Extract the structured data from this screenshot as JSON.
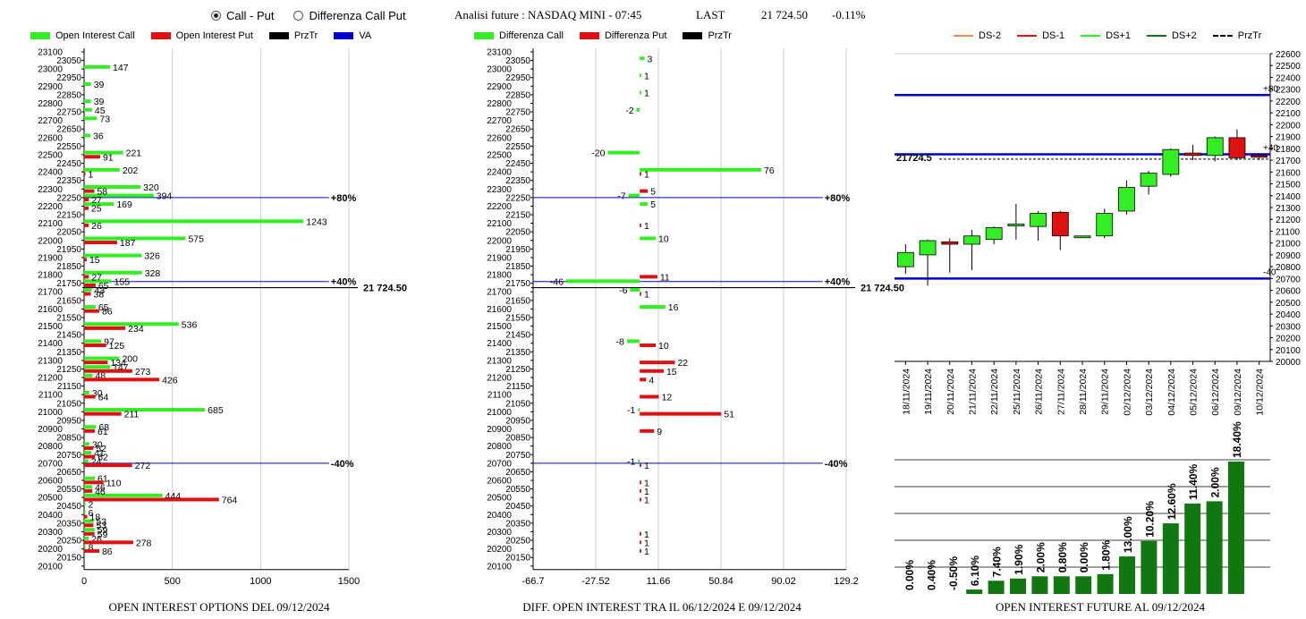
{
  "header": {
    "mode_options": [
      {
        "label": "Call - Put",
        "selected": true
      },
      {
        "label": "Differenza Call Put",
        "selected": false
      }
    ],
    "title": "Analisi future : NASDAQ MINI - 07:45",
    "last_label": "LAST",
    "last_value": "21 724.50",
    "last_change": "-0.11%"
  },
  "colors": {
    "call_green": "#33ee22",
    "put_red": "#dd1111",
    "blue": "#0000cc",
    "dark_green": "#117711"
  },
  "legends": {
    "left": [
      {
        "label": "Open Interest Call",
        "color": "#33ee22",
        "kind": "box"
      },
      {
        "label": "Open Interest Put",
        "color": "#dd1111",
        "kind": "box"
      },
      {
        "label": "PrzTr",
        "color": "#000000",
        "kind": "box"
      },
      {
        "label": "VA",
        "color": "#0000cc",
        "kind": "box"
      }
    ],
    "middle": [
      {
        "label": "Differenza Call",
        "color": "#33ee22",
        "kind": "box"
      },
      {
        "label": "Differenza Put",
        "color": "#dd1111",
        "kind": "box"
      },
      {
        "label": "PrzTr",
        "color": "#000000",
        "kind": "box"
      }
    ],
    "right": [
      {
        "label": "DS-2",
        "color": "#ff8844",
        "kind": "line"
      },
      {
        "label": "DS-1",
        "color": "#dd1111",
        "kind": "line"
      },
      {
        "label": "DS+1",
        "color": "#33ee22",
        "kind": "line"
      },
      {
        "label": "DS+2",
        "color": "#117711",
        "kind": "line"
      },
      {
        "label": "PrzTr",
        "color": "#000000",
        "kind": "dash"
      }
    ]
  },
  "captions": {
    "left": "OPEN INTEREST OPTIONS DEL 09/12/2024",
    "middle": "DIFF. OPEN INTEREST TRA IL 06/12/2024 E 09/12/2024",
    "right": "OPEN INTEREST FUTURE AL 09/12/2024"
  },
  "chart_data": [
    {
      "id": "oi-options",
      "type": "bar",
      "orientation": "horizontal",
      "strike_labels": [
        "23100",
        "23050",
        "23000",
        "22950",
        "22900",
        "22850",
        "22800",
        "22750",
        "22700",
        "22650",
        "22600",
        "22550",
        "22500",
        "22450",
        "22400",
        "22350",
        "22300",
        "22250",
        "22200",
        "22150",
        "22100",
        "22050",
        "22000",
        "21950",
        "21900",
        "21850",
        "21800",
        "21750",
        "21700",
        "21650",
        "21600",
        "21550",
        "21500",
        "21450",
        "21400",
        "21350",
        "21300",
        "21250",
        "21200",
        "21150",
        "21100",
        "21050",
        "21000",
        "20950",
        "20900",
        "20850",
        "20800",
        "20750",
        "20700",
        "20650",
        "20600",
        "20550",
        "20500",
        "20450",
        "20400",
        "20350",
        "20300",
        "20250",
        "20200",
        "20150",
        "20100"
      ],
      "xlim": [
        0,
        1500
      ],
      "xticks": [
        "0",
        "500",
        "1000",
        "1500"
      ],
      "series": [
        {
          "name": "Open Interest Call",
          "points": [
            {
              "strike": 23000,
              "value": 147
            },
            {
              "strike": 22900,
              "value": 39
            },
            {
              "strike": 22800,
              "value": 39
            },
            {
              "strike": 22750,
              "value": 45
            },
            {
              "strike": 22700,
              "value": 73
            },
            {
              "strike": 22600,
              "value": 36
            },
            {
              "strike": 22500,
              "value": 221
            },
            {
              "strike": 22400,
              "value": 202
            },
            {
              "strike": 22300,
              "value": 320
            },
            {
              "strike": 22250,
              "value": 394
            },
            {
              "strike": 22200,
              "value": 169
            },
            {
              "strike": 22100,
              "value": 1243
            },
            {
              "strike": 22000,
              "value": 575
            },
            {
              "strike": 21900,
              "value": 326
            },
            {
              "strike": 21800,
              "value": 328
            },
            {
              "strike": 21750,
              "value": 155
            },
            {
              "strike": 21700,
              "value": 43
            },
            {
              "strike": 21600,
              "value": 65
            },
            {
              "strike": 21500,
              "value": 536
            },
            {
              "strike": 21400,
              "value": 97
            },
            {
              "strike": 21300,
              "value": 200
            },
            {
              "strike": 21250,
              "value": 147
            },
            {
              "strike": 21200,
              "value": 48
            },
            {
              "strike": 21100,
              "value": 30
            },
            {
              "strike": 21000,
              "value": 685
            },
            {
              "strike": 20900,
              "value": 68
            },
            {
              "strike": 20800,
              "value": 30
            },
            {
              "strike": 20750,
              "value": 41
            },
            {
              "strike": 20700,
              "value": 24
            },
            {
              "strike": 20600,
              "value": 61
            },
            {
              "strike": 20550,
              "value": 46
            },
            {
              "strike": 20500,
              "value": 444
            },
            {
              "strike": 20450,
              "value": 2
            },
            {
              "strike": 20400,
              "value": 6
            },
            {
              "strike": 20350,
              "value": 53
            },
            {
              "strike": 20300,
              "value": 59
            },
            {
              "strike": 20250,
              "value": 26
            },
            {
              "strike": 20200,
              "value": 8
            }
          ]
        },
        {
          "name": "Open Interest Put",
          "points": [
            {
              "strike": 22500,
              "value": 91
            },
            {
              "strike": 22400,
              "value": 1
            },
            {
              "strike": 22300,
              "value": 58
            },
            {
              "strike": 22250,
              "value": 27
            },
            {
              "strike": 22200,
              "value": 25
            },
            {
              "strike": 22100,
              "value": 26
            },
            {
              "strike": 22000,
              "value": 187
            },
            {
              "strike": 21900,
              "value": 15
            },
            {
              "strike": 21800,
              "value": 27
            },
            {
              "strike": 21750,
              "value": 65
            },
            {
              "strike": 21700,
              "value": 38
            },
            {
              "strike": 21600,
              "value": 86
            },
            {
              "strike": 21500,
              "value": 234
            },
            {
              "strike": 21400,
              "value": 125
            },
            {
              "strike": 21300,
              "value": 134
            },
            {
              "strike": 21250,
              "value": 273
            },
            {
              "strike": 21200,
              "value": 426
            },
            {
              "strike": 21100,
              "value": 64
            },
            {
              "strike": 21000,
              "value": 211
            },
            {
              "strike": 20900,
              "value": 61
            },
            {
              "strike": 20800,
              "value": 52
            },
            {
              "strike": 20750,
              "value": 62
            },
            {
              "strike": 20700,
              "value": 272
            },
            {
              "strike": 20600,
              "value": 110
            },
            {
              "strike": 20550,
              "value": 46
            },
            {
              "strike": 20500,
              "value": 764
            },
            {
              "strike": 20400,
              "value": 18
            },
            {
              "strike": 20350,
              "value": 53
            },
            {
              "strike": 20300,
              "value": 59
            },
            {
              "strike": 20250,
              "value": 278
            },
            {
              "strike": 20200,
              "value": 86
            }
          ]
        }
      ],
      "reference_lines": [
        {
          "label": "+80%",
          "strike": 22250
        },
        {
          "label": "+40%",
          "strike": 21760
        },
        {
          "label": "-40%",
          "strike": 20700
        }
      ],
      "last_price": {
        "label": "21 724.50",
        "value": 21724.5
      }
    },
    {
      "id": "diff-options",
      "type": "bar",
      "orientation": "horizontal",
      "strike_labels": [
        "23100",
        "23050",
        "23000",
        "22950",
        "22900",
        "22850",
        "22800",
        "22750",
        "22700",
        "22650",
        "22600",
        "22550",
        "22500",
        "22450",
        "22400",
        "22350",
        "22300",
        "22250",
        "22200",
        "22150",
        "22100",
        "22050",
        "22000",
        "21950",
        "21900",
        "21850",
        "21800",
        "21750",
        "21700",
        "21650",
        "21600",
        "21550",
        "21500",
        "21450",
        "21400",
        "21350",
        "21300",
        "21250",
        "21200",
        "21150",
        "21100",
        "21050",
        "21000",
        "20950",
        "20900",
        "20850",
        "20800",
        "20750",
        "20700",
        "20650",
        "20600",
        "20550",
        "20500",
        "20450",
        "20400",
        "20350",
        "20300",
        "20250",
        "20200",
        "20150",
        "20100"
      ],
      "xlim": [
        -66.7,
        129.2
      ],
      "xticks": [
        "-66.7",
        "-27.52",
        "11.66",
        "50.84",
        "90.02",
        "129.2"
      ],
      "series": [
        {
          "name": "Differenza Call",
          "points": [
            {
              "strike": 23050,
              "value": 3
            },
            {
              "strike": 22950,
              "value": 1
            },
            {
              "strike": 22850,
              "value": 1
            },
            {
              "strike": 22750,
              "value": -2
            },
            {
              "strike": 22500,
              "value": -20
            },
            {
              "strike": 22400,
              "value": 76
            },
            {
              "strike": 22250,
              "value": -7
            },
            {
              "strike": 22200,
              "value": 5
            },
            {
              "strike": 22000,
              "value": 10
            },
            {
              "strike": 21750,
              "value": -46
            },
            {
              "strike": 21700,
              "value": -6
            },
            {
              "strike": 21600,
              "value": 16
            },
            {
              "strike": 21400,
              "value": -8
            },
            {
              "strike": 21000,
              "value": -1
            },
            {
              "strike": 20700,
              "value": -1
            }
          ]
        },
        {
          "name": "Differenza Put",
          "points": [
            {
              "strike": 22400,
              "value": 1
            },
            {
              "strike": 22300,
              "value": 5
            },
            {
              "strike": 22100,
              "value": 1
            },
            {
              "strike": 21800,
              "value": 11
            },
            {
              "strike": 21700,
              "value": 1
            },
            {
              "strike": 21400,
              "value": 10
            },
            {
              "strike": 21300,
              "value": 22
            },
            {
              "strike": 21250,
              "value": 15
            },
            {
              "strike": 21200,
              "value": 4
            },
            {
              "strike": 21100,
              "value": 12
            },
            {
              "strike": 21000,
              "value": 51
            },
            {
              "strike": 20900,
              "value": 9
            },
            {
              "strike": 20700,
              "value": 1
            },
            {
              "strike": 20600,
              "value": 1
            },
            {
              "strike": 20550,
              "value": 1
            },
            {
              "strike": 20500,
              "value": 1
            },
            {
              "strike": 20300,
              "value": 1
            },
            {
              "strike": 20250,
              "value": 1
            },
            {
              "strike": 20200,
              "value": 1
            }
          ]
        }
      ],
      "reference_lines": [
        {
          "label": "+80%",
          "strike": 22250
        },
        {
          "label": "+40%",
          "strike": 21760
        },
        {
          "label": "-40%",
          "strike": 20700
        }
      ],
      "last_price": {
        "label": "21 724.50",
        "value": 21724.5
      }
    },
    {
      "id": "future-candles",
      "type": "candlestick",
      "dates": [
        "18/11/2024",
        "19/11/2024",
        "20/11/2024",
        "21/11/2024",
        "22/11/2024",
        "25/11/2024",
        "26/11/2024",
        "27/11/2024",
        "28/11/2024",
        "29/11/2024",
        "02/12/2024",
        "03/12/2024",
        "04/12/2024",
        "05/12/2024",
        "06/12/2024",
        "09/12/2024",
        "10/12/2024"
      ],
      "ohlc": [
        {
          "o": 20800,
          "h": 20990,
          "l": 20740,
          "c": 20920
        },
        {
          "o": 20900,
          "h": 21030,
          "l": 20640,
          "c": 21020
        },
        {
          "o": 21010,
          "h": 21040,
          "l": 20750,
          "c": 20990
        },
        {
          "o": 20990,
          "h": 21110,
          "l": 20770,
          "c": 21060
        },
        {
          "o": 21030,
          "h": 21140,
          "l": 20990,
          "c": 21130
        },
        {
          "o": 21150,
          "h": 21330,
          "l": 21030,
          "c": 21160
        },
        {
          "o": 21140,
          "h": 21270,
          "l": 21020,
          "c": 21250
        },
        {
          "o": 21260,
          "h": 21270,
          "l": 20940,
          "c": 21060
        },
        {
          "o": 21060,
          "h": 21060,
          "l": 21050,
          "c": 21060
        },
        {
          "o": 21060,
          "h": 21290,
          "l": 21040,
          "c": 21250
        },
        {
          "o": 21270,
          "h": 21530,
          "l": 21240,
          "c": 21470
        },
        {
          "o": 21480,
          "h": 21610,
          "l": 21410,
          "c": 21590
        },
        {
          "o": 21580,
          "h": 21800,
          "l": 21560,
          "c": 21790
        },
        {
          "o": 21760,
          "h": 21830,
          "l": 21700,
          "c": 21740
        },
        {
          "o": 21740,
          "h": 21900,
          "l": 21690,
          "c": 21890
        },
        {
          "o": 21890,
          "h": 21960,
          "l": 21700,
          "c": 21720
        },
        {
          "o": 21740,
          "h": 21760,
          "l": 21700,
          "c": 21725
        }
      ],
      "ylim": [
        20000,
        22600
      ],
      "yticks": [
        "20000",
        "20100",
        "20200",
        "20300",
        "20400",
        "20500",
        "20600",
        "20700",
        "20800",
        "20900",
        "21000",
        "21100",
        "21200",
        "21300",
        "21400",
        "21500",
        "21600",
        "21700",
        "21800",
        "21900",
        "22000",
        "22100",
        "22200",
        "22300",
        "22400",
        "22500",
        "22600"
      ],
      "levels": [
        {
          "label": "+80",
          "value": 22250
        },
        {
          "label": "+40",
          "value": 21750
        },
        {
          "label": "-40",
          "value": 20700
        }
      ],
      "last_price": {
        "label": "21724.5",
        "value": 21724.5
      }
    },
    {
      "id": "future-oi",
      "type": "bar",
      "dates": [
        "18/11/2024",
        "19/11/2024",
        "20/11/2024",
        "21/11/2024",
        "22/11/2024",
        "25/11/2024",
        "26/11/2024",
        "27/11/2024",
        "28/11/2024",
        "29/11/2024",
        "02/12/2024",
        "03/12/2024",
        "04/12/2024",
        "05/12/2024",
        "06/12/2024",
        "09/12/2024"
      ],
      "values": [
        0.0,
        0.0,
        0.0,
        1.0,
        3.0,
        3.5,
        4.0,
        4.0,
        4.0,
        4.5,
        8.5,
        12.0,
        16.0,
        20.5,
        21.0,
        30.0
      ],
      "labels": [
        "0.00%",
        "0.40%",
        "-0.50%",
        "6.10%",
        "7.40%",
        "1.90%",
        "2.00%",
        "0.80%",
        "0.00%",
        "1.80%",
        "13.00%",
        "10.20%",
        "12.60%",
        "11.40%",
        "2.00%",
        "18.40%"
      ],
      "ylim": [
        0,
        30
      ]
    }
  ]
}
